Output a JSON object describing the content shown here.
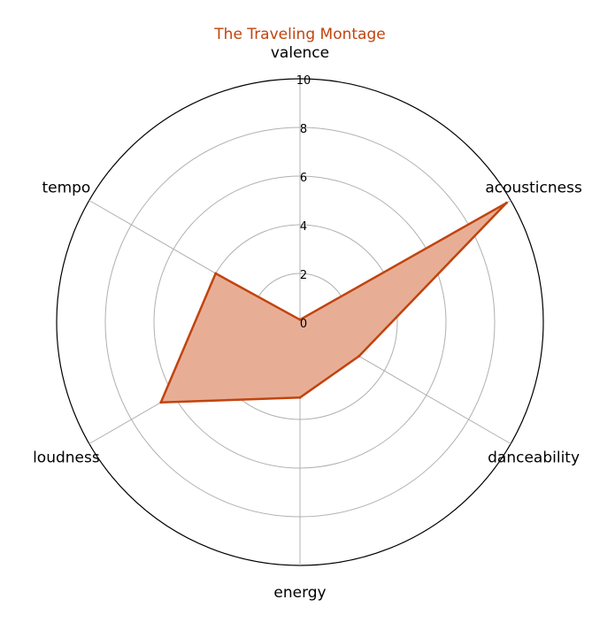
{
  "chart_data": {
    "type": "radar",
    "title": "The Traveling Montage",
    "axes": [
      "valence",
      "acousticness",
      "danceability",
      "energy",
      "loudness",
      "tempo"
    ],
    "values": [
      0.1,
      9.8,
      2.8,
      3.1,
      6.6,
      4.0
    ],
    "rlim": [
      0,
      10
    ],
    "ticks": [
      "0",
      "2",
      "4",
      "6",
      "8",
      "10"
    ],
    "grid": true,
    "colors": {
      "line": "#c1440e",
      "fill": "#e8ae95",
      "title": "#c1440e",
      "grid": "#b0b0b0",
      "frame": "#000000"
    }
  }
}
